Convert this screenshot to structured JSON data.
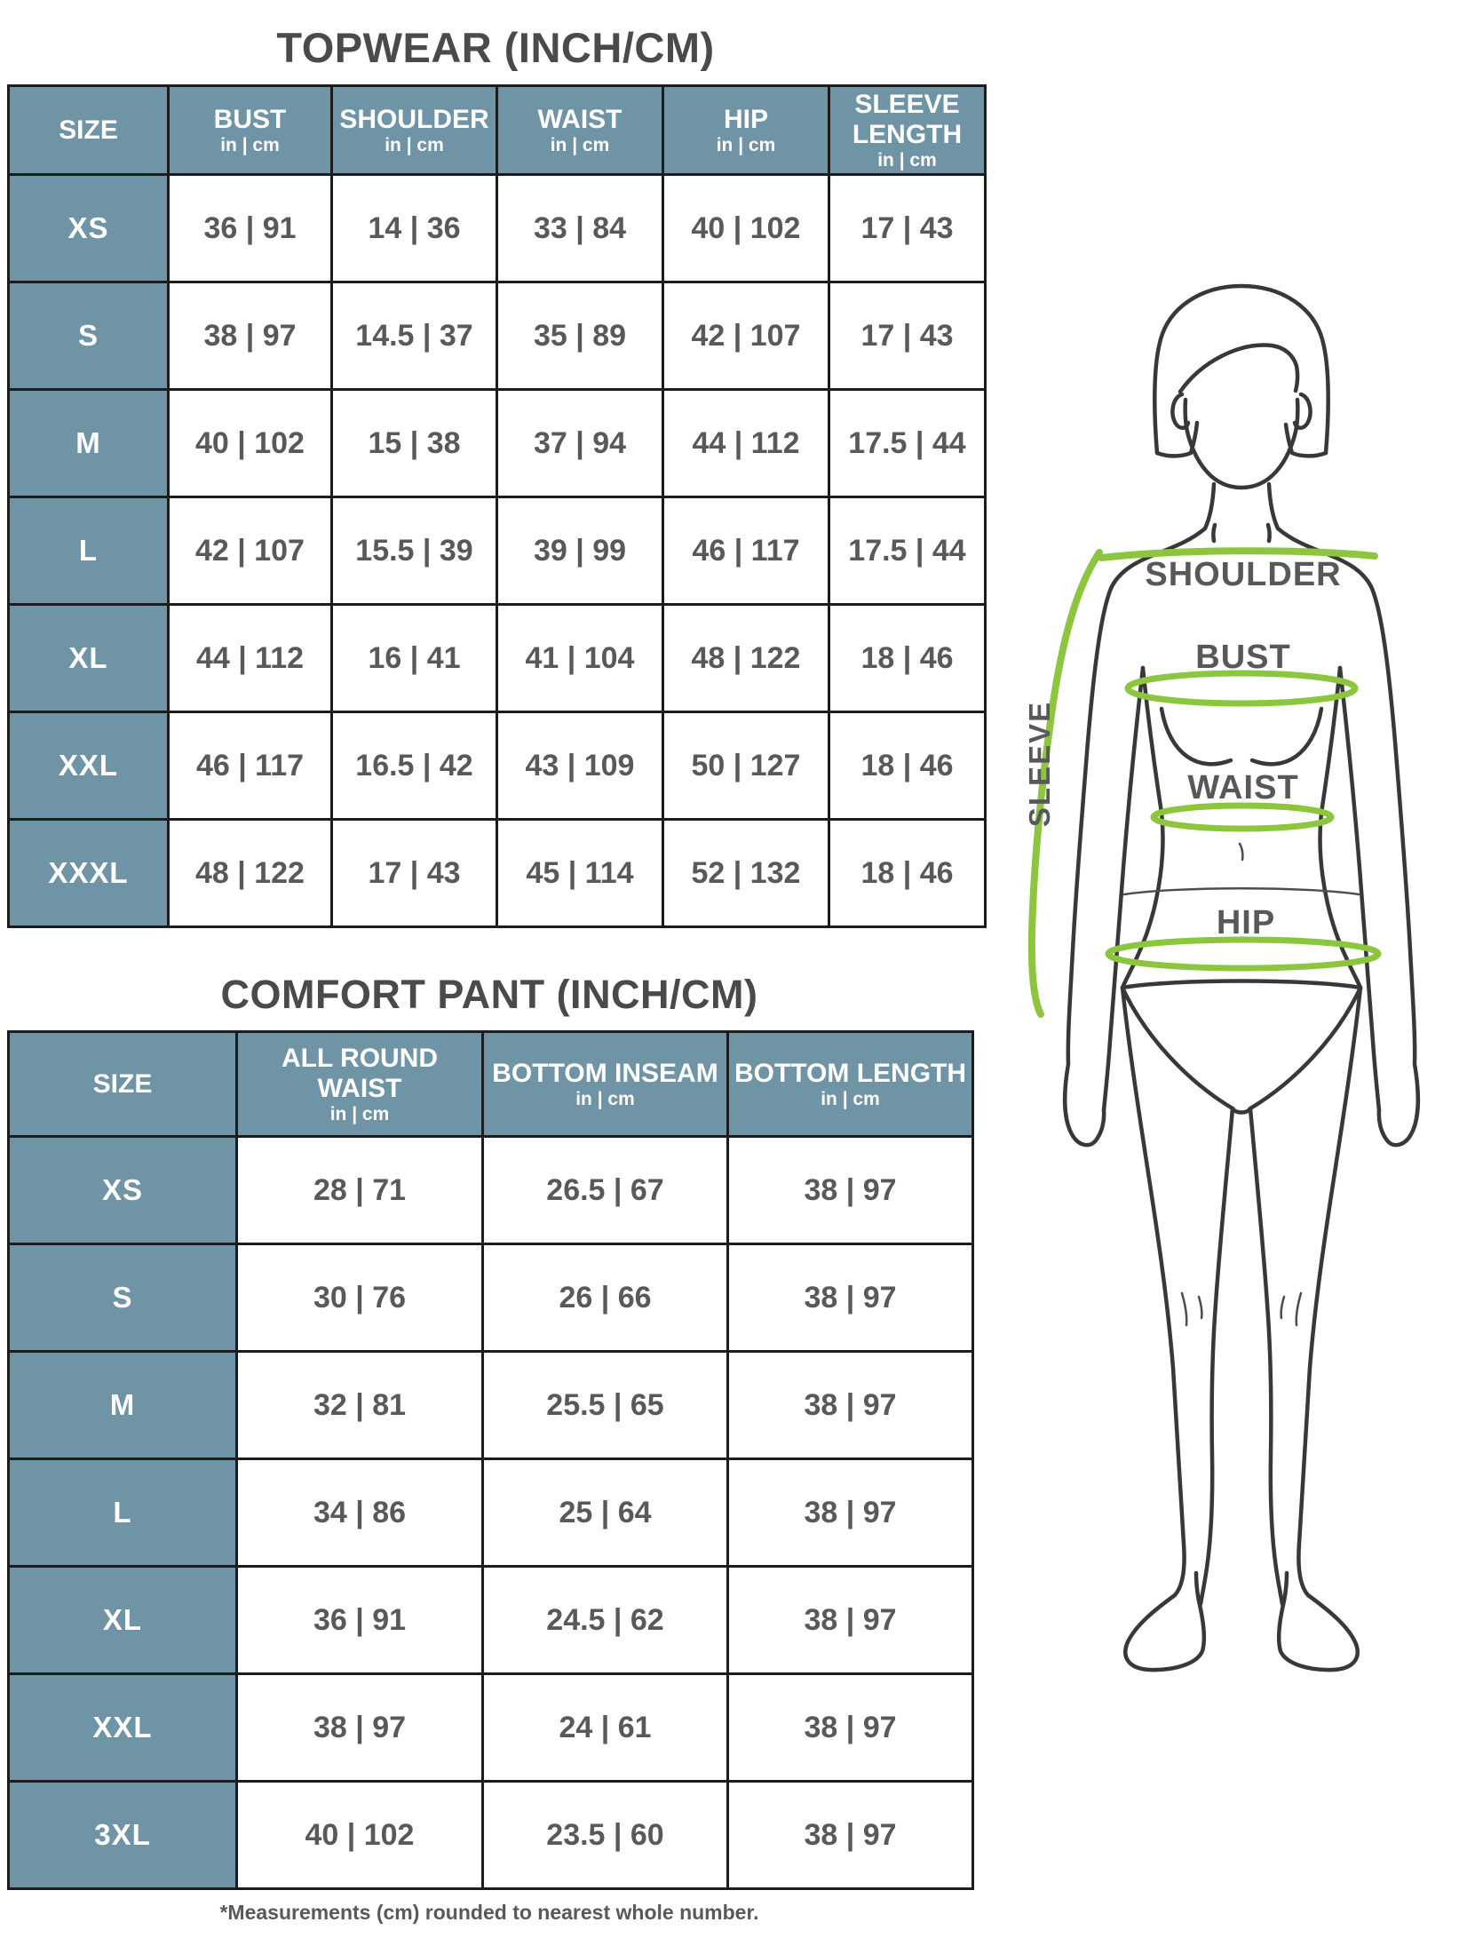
{
  "topwear_table": {
    "title": "TOPWEAR (INCH/CM)",
    "headers": [
      {
        "label": "SIZE",
        "unit": ""
      },
      {
        "label": "BUST",
        "unit": "in | cm"
      },
      {
        "label": "SHOULDER",
        "unit": "in | cm"
      },
      {
        "label": "WAIST",
        "unit": "in | cm"
      },
      {
        "label": "HIP",
        "unit": "in | cm"
      },
      {
        "label": "SLEEVE LENGTH",
        "unit": "in | cm"
      }
    ],
    "rows": [
      {
        "size": "XS",
        "values": [
          "36 | 91",
          "14 | 36",
          "33 | 84",
          "40 | 102",
          "17 | 43"
        ]
      },
      {
        "size": "S",
        "values": [
          "38 | 97",
          "14.5 | 37",
          "35 | 89",
          "42 | 107",
          "17 | 43"
        ]
      },
      {
        "size": "M",
        "values": [
          "40 | 102",
          "15 | 38",
          "37 | 94",
          "44 | 112",
          "17.5 | 44"
        ]
      },
      {
        "size": "L",
        "values": [
          "42 | 107",
          "15.5 | 39",
          "39 | 99",
          "46 | 117",
          "17.5 | 44"
        ]
      },
      {
        "size": "XL",
        "values": [
          "44 | 112",
          "16 | 41",
          "41 | 104",
          "48 | 122",
          "18 | 46"
        ]
      },
      {
        "size": "XXL",
        "values": [
          "46 | 117",
          "16.5 | 42",
          "43 | 109",
          "50 | 127",
          "18 | 46"
        ]
      },
      {
        "size": "XXXL",
        "values": [
          "48 | 122",
          "17 | 43",
          "45 | 114",
          "52 | 132",
          "18 | 46"
        ]
      }
    ]
  },
  "pant_table": {
    "title": "COMFORT PANT (INCH/CM)",
    "headers": [
      {
        "label": "SIZE",
        "unit": ""
      },
      {
        "label": "ALL ROUND WAIST",
        "unit": "in | cm"
      },
      {
        "label": "BOTTOM INSEAM",
        "unit": "in | cm"
      },
      {
        "label": "BOTTOM LENGTH",
        "unit": "in | cm"
      }
    ],
    "rows": [
      {
        "size": "XS",
        "values": [
          "28 | 71",
          "26.5 | 67",
          "38 | 97"
        ]
      },
      {
        "size": "S",
        "values": [
          "30 | 76",
          "26 | 66",
          "38 | 97"
        ]
      },
      {
        "size": "M",
        "values": [
          "32 | 81",
          "25.5 | 65",
          "38 | 97"
        ]
      },
      {
        "size": "L",
        "values": [
          "34 | 86",
          "25 | 64",
          "38 | 97"
        ]
      },
      {
        "size": "XL",
        "values": [
          "36 | 91",
          "24.5 | 62",
          "38 | 97"
        ]
      },
      {
        "size": "XXL",
        "values": [
          "38 | 97",
          "24 | 61",
          "38 | 97"
        ]
      },
      {
        "size": "3XL",
        "values": [
          "40 | 102",
          "23.5 | 60",
          "38 | 97"
        ]
      }
    ]
  },
  "footnote": "*Measurements (cm) rounded to nearest whole number.",
  "figure": {
    "labels": {
      "shoulder": "SHOULDER",
      "bust": "BUST",
      "waist": "WAIST",
      "hip": "HIP",
      "sleeve": "SLEEVE"
    }
  },
  "colors": {
    "header_bg": "#6F94A6",
    "border": "#1C1C1C",
    "title": "#4A4A4A",
    "value": "#595959",
    "green": "#8CC63E",
    "outline": "#383838",
    "label": "#57585A"
  }
}
